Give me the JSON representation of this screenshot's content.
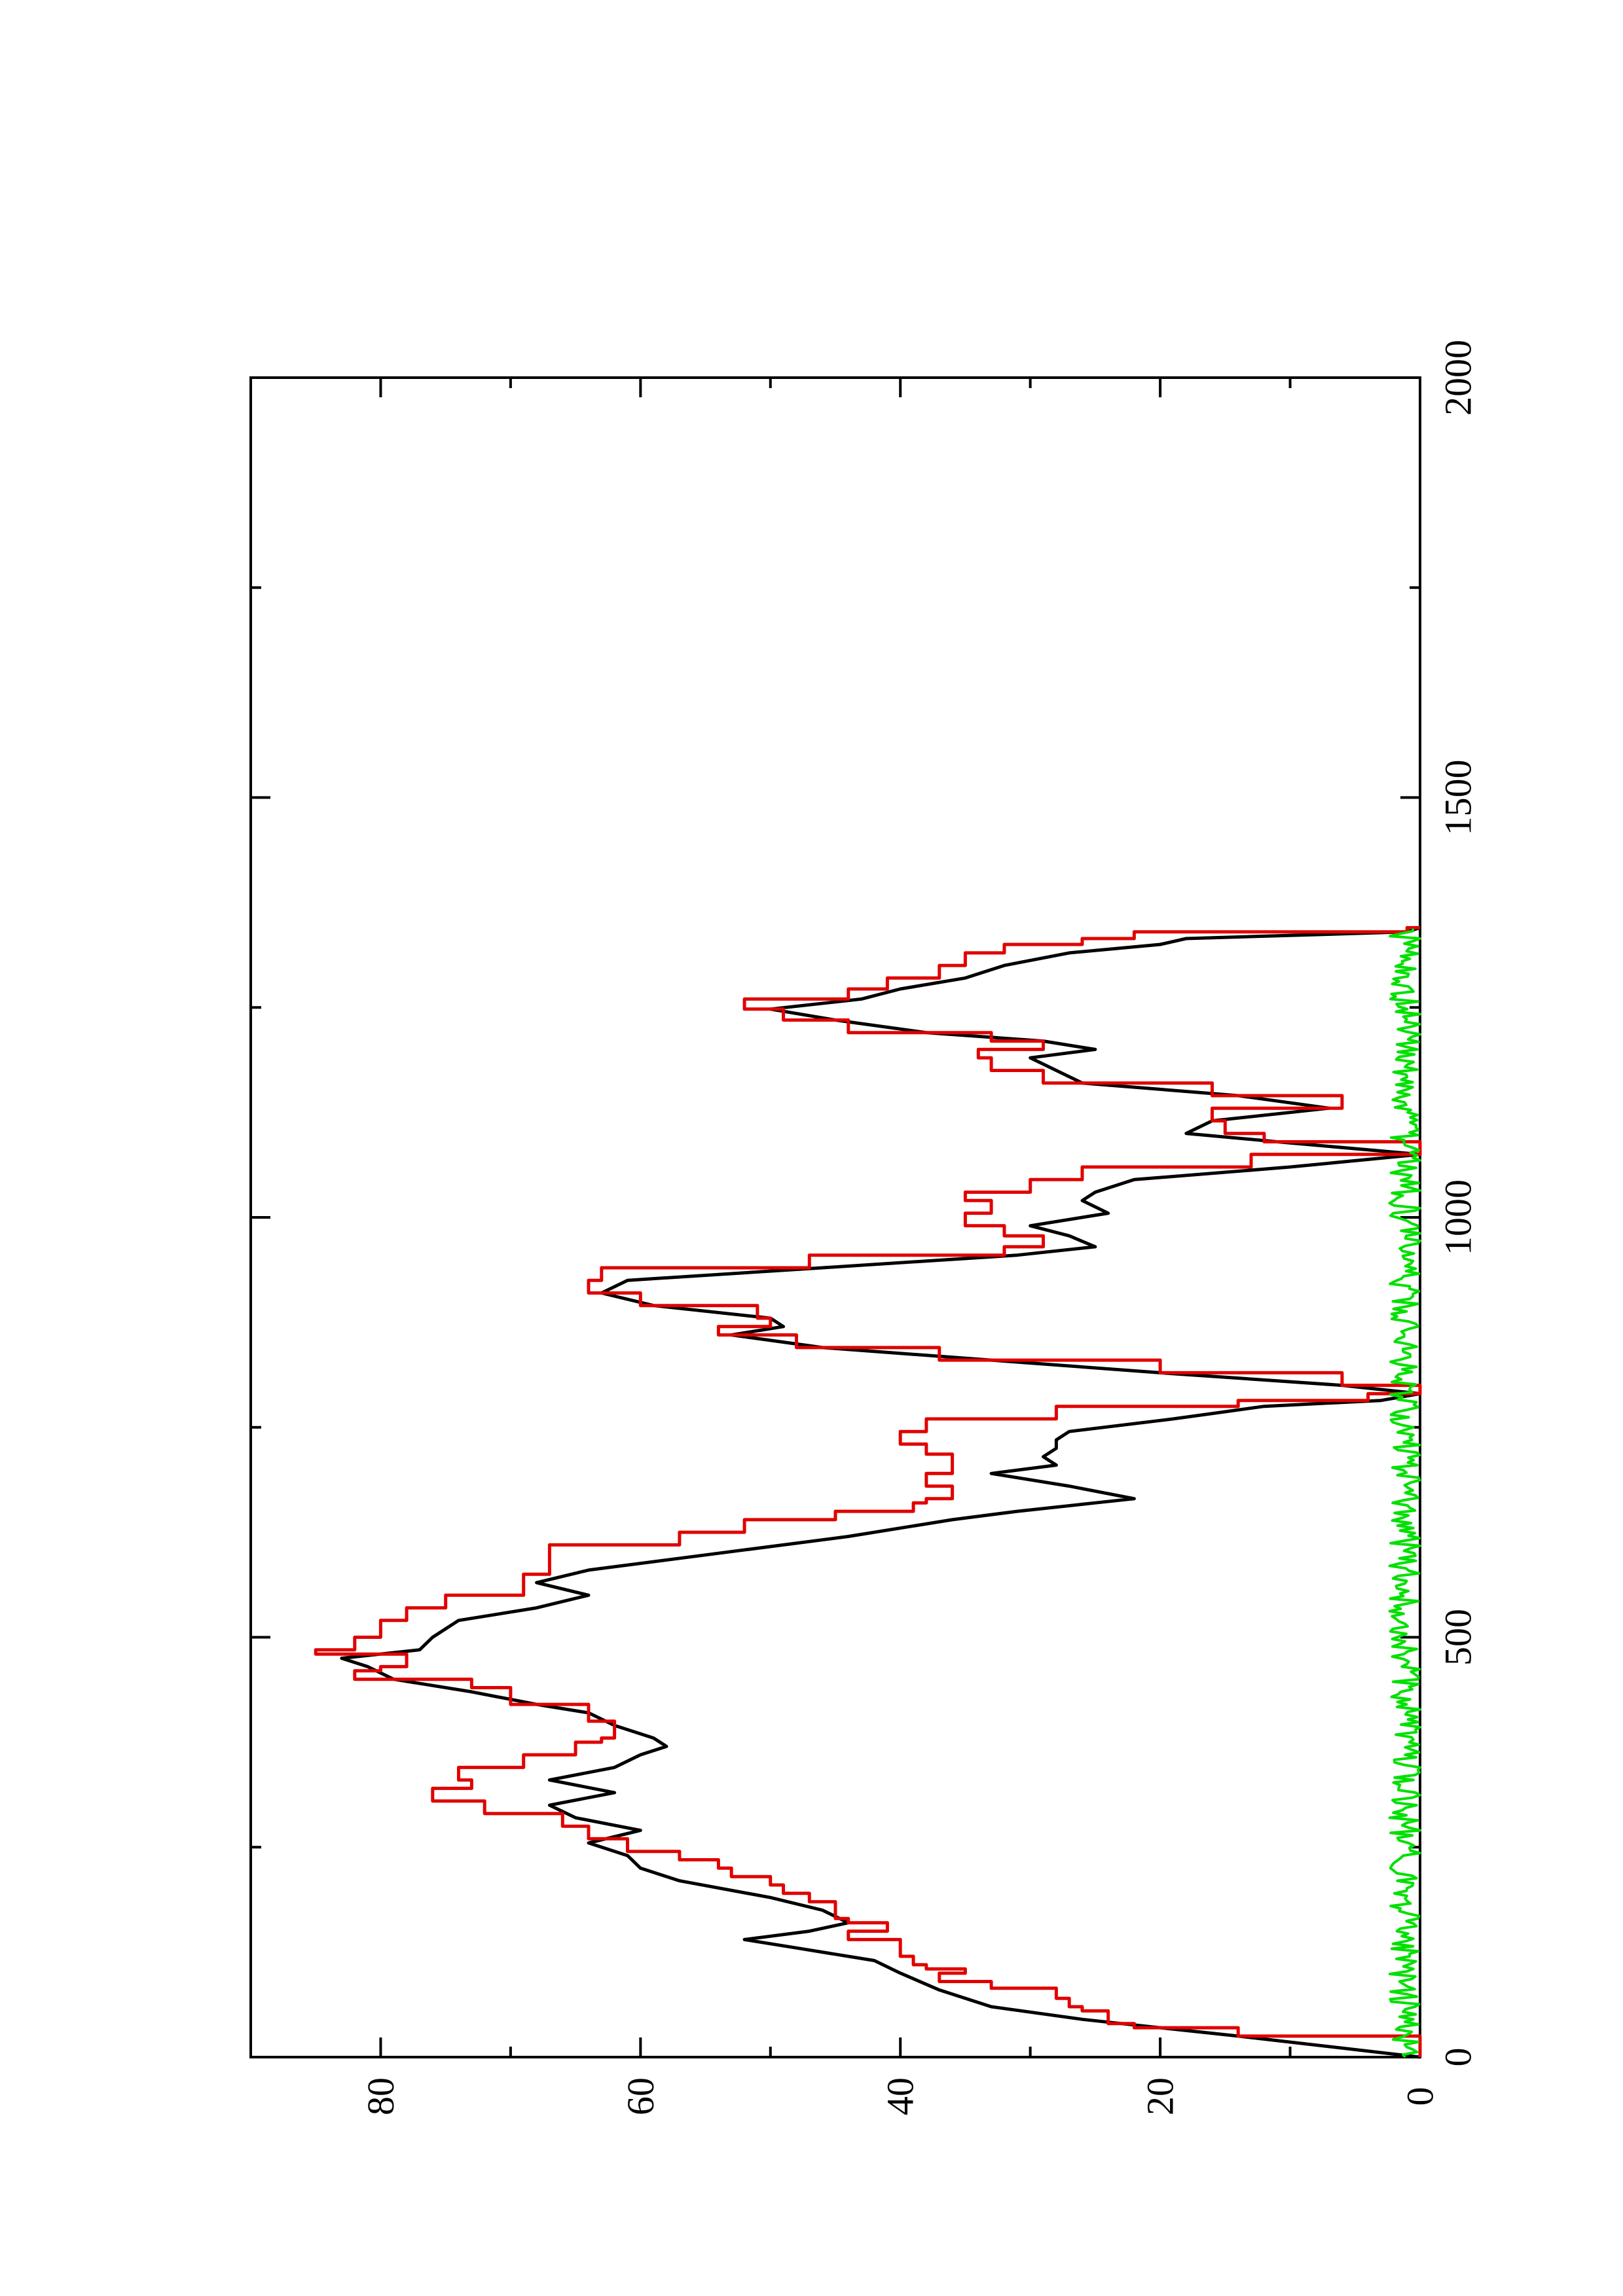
{
  "chart_data": {
    "type": "line",
    "orientation": "rotated-90-ccw",
    "title": "",
    "xlabel": "",
    "ylabel": "",
    "xlim": [
      0,
      2000
    ],
    "ylim": [
      0,
      90
    ],
    "x_ticks": [
      0,
      500,
      1000,
      1500,
      2000
    ],
    "x_tick_labels": [
      "0",
      "500",
      "1000",
      "1500",
      "2000"
    ],
    "x_minor_ticks": [
      250,
      750,
      1250,
      1750
    ],
    "y_ticks": [
      0,
      20,
      40,
      60,
      80
    ],
    "y_tick_labels": [
      "0",
      "20",
      "40",
      "60",
      "80"
    ],
    "y_minor_ticks": [
      10,
      30,
      50,
      70
    ],
    "grid": false,
    "legend": "none",
    "colors": {
      "black": "#000000",
      "red": "#e00000",
      "green": "#00e000"
    },
    "series": [
      {
        "color": "#000000",
        "style": "smooth",
        "points": [
          [
            0,
            0
          ],
          [
            25,
            14
          ],
          [
            45,
            26
          ],
          [
            60,
            33
          ],
          [
            80,
            37
          ],
          [
            100,
            40
          ],
          [
            115,
            42
          ],
          [
            130,
            48
          ],
          [
            140,
            52
          ],
          [
            150,
            47
          ],
          [
            160,
            44
          ],
          [
            175,
            46
          ],
          [
            190,
            50
          ],
          [
            210,
            57
          ],
          [
            225,
            60
          ],
          [
            240,
            61
          ],
          [
            255,
            64
          ],
          [
            270,
            60
          ],
          [
            285,
            65
          ],
          [
            300,
            67
          ],
          [
            315,
            62
          ],
          [
            330,
            67
          ],
          [
            345,
            62
          ],
          [
            360,
            60
          ],
          [
            370,
            58
          ],
          [
            380,
            59
          ],
          [
            395,
            62
          ],
          [
            410,
            64
          ],
          [
            420,
            68
          ],
          [
            435,
            73
          ],
          [
            450,
            79
          ],
          [
            465,
            81
          ],
          [
            475,
            83
          ],
          [
            485,
            77
          ],
          [
            500,
            76
          ],
          [
            520,
            74
          ],
          [
            535,
            68
          ],
          [
            550,
            64
          ],
          [
            565,
            68
          ],
          [
            580,
            64
          ],
          [
            600,
            54
          ],
          [
            620,
            44
          ],
          [
            640,
            36
          ],
          [
            650,
            31
          ],
          [
            660,
            25
          ],
          [
            665,
            22
          ],
          [
            680,
            27
          ],
          [
            695,
            33
          ],
          [
            705,
            28
          ],
          [
            715,
            29
          ],
          [
            725,
            28
          ],
          [
            735,
            28
          ],
          [
            745,
            27
          ],
          [
            760,
            19
          ],
          [
            775,
            12
          ],
          [
            782,
            3
          ],
          [
            790,
            0
          ],
          [
            800,
            6
          ],
          [
            815,
            20
          ],
          [
            830,
            33
          ],
          [
            845,
            46
          ],
          [
            860,
            53
          ],
          [
            870,
            49
          ],
          [
            880,
            50
          ],
          [
            895,
            59
          ],
          [
            910,
            63
          ],
          [
            925,
            61
          ],
          [
            940,
            46
          ],
          [
            955,
            31
          ],
          [
            965,
            25
          ],
          [
            978,
            27
          ],
          [
            990,
            30
          ],
          [
            1005,
            24
          ],
          [
            1020,
            26
          ],
          [
            1030,
            25
          ],
          [
            1045,
            22
          ],
          [
            1060,
            10
          ],
          [
            1075,
            0
          ],
          [
            1090,
            11
          ],
          [
            1100,
            18
          ],
          [
            1115,
            16
          ],
          [
            1130,
            7
          ],
          [
            1145,
            14
          ],
          [
            1160,
            26
          ],
          [
            1175,
            28
          ],
          [
            1190,
            30
          ],
          [
            1200,
            25
          ],
          [
            1210,
            29
          ],
          [
            1220,
            38
          ],
          [
            1235,
            45
          ],
          [
            1248,
            50
          ],
          [
            1260,
            43
          ],
          [
            1272,
            40
          ],
          [
            1285,
            35
          ],
          [
            1300,
            32
          ],
          [
            1315,
            27
          ],
          [
            1325,
            20
          ],
          [
            1332,
            18
          ],
          [
            1340,
            1
          ],
          [
            1345,
            0
          ]
        ]
      },
      {
        "color": "#e00000",
        "style": "step",
        "points": [
          [
            0,
            0
          ],
          [
            25,
            14
          ],
          [
            35,
            22
          ],
          [
            40,
            24
          ],
          [
            50,
            24
          ],
          [
            55,
            26
          ],
          [
            60,
            27
          ],
          [
            65,
            27
          ],
          [
            70,
            28
          ],
          [
            82,
            33
          ],
          [
            90,
            37
          ],
          [
            95,
            37
          ],
          [
            100,
            35
          ],
          [
            105,
            38
          ],
          [
            110,
            39
          ],
          [
            120,
            40
          ],
          [
            130,
            40
          ],
          [
            140,
            44
          ],
          [
            150,
            41
          ],
          [
            155,
            41
          ],
          [
            160,
            44
          ],
          [
            165,
            45
          ],
          [
            175,
            45
          ],
          [
            185,
            47
          ],
          [
            195,
            49
          ],
          [
            205,
            50
          ],
          [
            215,
            53
          ],
          [
            225,
            54
          ],
          [
            235,
            57
          ],
          [
            245,
            61
          ],
          [
            260,
            64
          ],
          [
            275,
            66
          ],
          [
            290,
            72
          ],
          [
            305,
            76
          ],
          [
            320,
            73
          ],
          [
            330,
            74
          ],
          [
            345,
            69
          ],
          [
            360,
            65
          ],
          [
            375,
            63
          ],
          [
            380,
            62
          ],
          [
            395,
            62
          ],
          [
            400,
            64
          ],
          [
            420,
            70
          ],
          [
            440,
            73
          ],
          [
            450,
            82
          ],
          [
            455,
            82
          ],
          [
            460,
            80
          ],
          [
            465,
            78
          ],
          [
            480,
            85
          ],
          [
            485,
            82
          ],
          [
            500,
            80
          ],
          [
            520,
            78
          ],
          [
            535,
            75
          ],
          [
            550,
            69
          ],
          [
            560,
            69
          ],
          [
            575,
            67
          ],
          [
            590,
            67
          ],
          [
            610,
            57
          ],
          [
            625,
            52
          ],
          [
            640,
            45
          ],
          [
            650,
            39
          ],
          [
            660,
            38
          ],
          [
            665,
            36
          ],
          [
            680,
            38
          ],
          [
            695,
            36
          ],
          [
            705,
            36
          ],
          [
            718,
            38
          ],
          [
            730,
            40
          ],
          [
            745,
            38
          ],
          [
            760,
            28
          ],
          [
            775,
            14
          ],
          [
            782,
            4
          ],
          [
            790,
            0
          ],
          [
            800,
            6
          ],
          [
            815,
            20
          ],
          [
            830,
            37
          ],
          [
            845,
            48
          ],
          [
            860,
            54
          ],
          [
            870,
            50
          ],
          [
            880,
            51
          ],
          [
            895,
            60
          ],
          [
            910,
            64
          ],
          [
            925,
            63
          ],
          [
            940,
            47
          ],
          [
            955,
            32
          ],
          [
            965,
            29
          ],
          [
            978,
            32
          ],
          [
            990,
            35
          ],
          [
            1005,
            33
          ],
          [
            1020,
            35
          ],
          [
            1030,
            30
          ],
          [
            1045,
            26
          ],
          [
            1060,
            13
          ],
          [
            1075,
            0
          ],
          [
            1090,
            12
          ],
          [
            1100,
            15
          ],
          [
            1115,
            16
          ],
          [
            1130,
            6
          ],
          [
            1145,
            16
          ],
          [
            1160,
            29
          ],
          [
            1175,
            33
          ],
          [
            1190,
            34
          ],
          [
            1200,
            29
          ],
          [
            1210,
            33
          ],
          [
            1220,
            44
          ],
          [
            1235,
            49
          ],
          [
            1248,
            52
          ],
          [
            1260,
            44
          ],
          [
            1272,
            41
          ],
          [
            1285,
            37
          ],
          [
            1300,
            35
          ],
          [
            1315,
            32
          ],
          [
            1325,
            26
          ],
          [
            1332,
            22
          ],
          [
            1340,
            1
          ],
          [
            1345,
            0
          ]
        ]
      },
      {
        "color": "#00e000",
        "style": "noise",
        "x_range": [
          0,
          1345
        ],
        "mean": 0.8,
        "amplitude": 1.2
      }
    ]
  }
}
